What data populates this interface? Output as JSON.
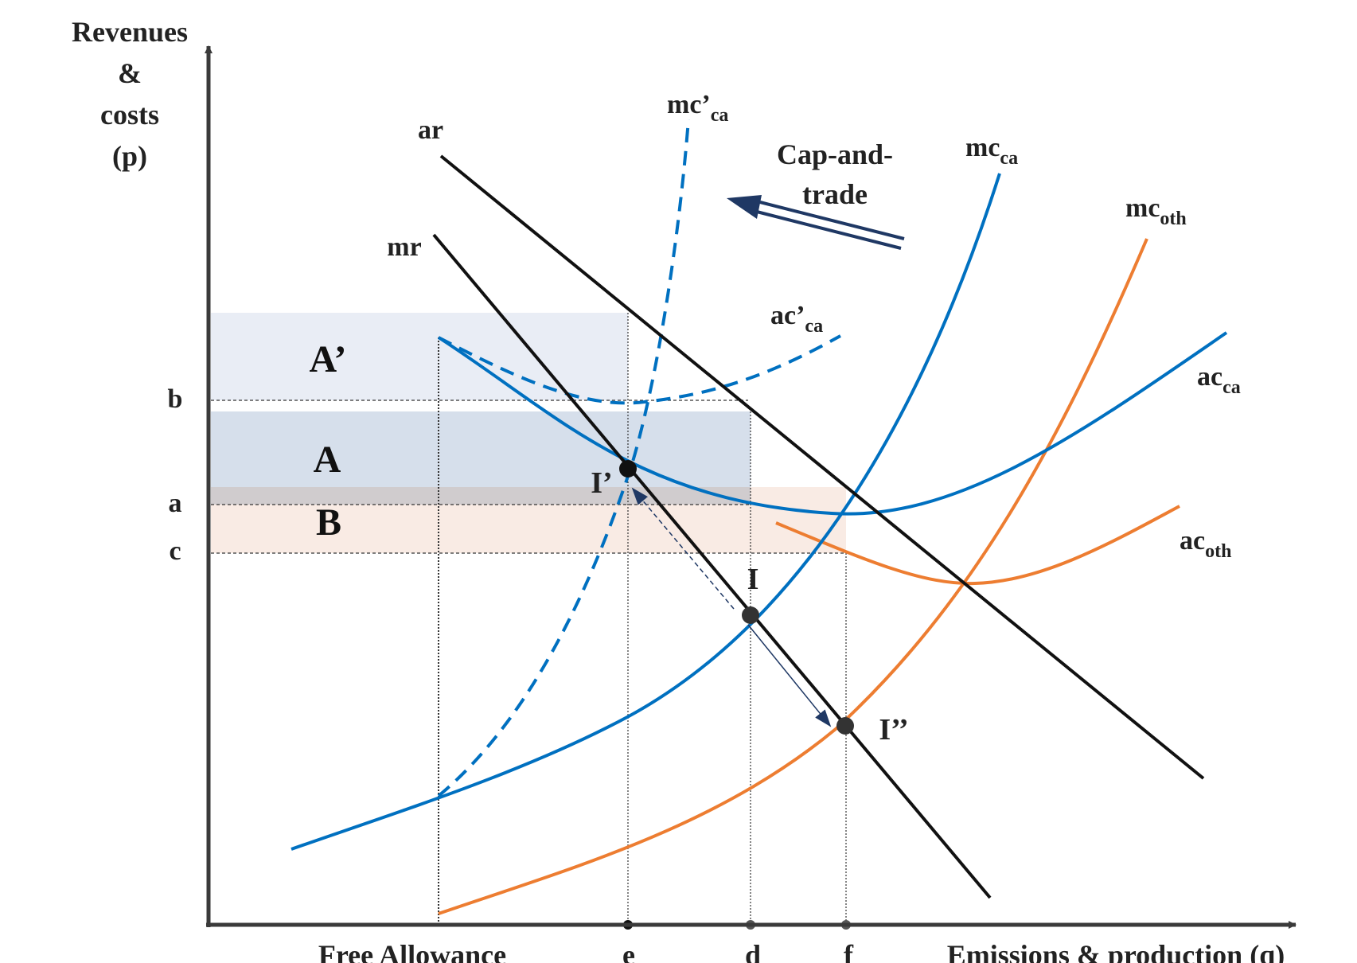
{
  "axes": {
    "y_label_lines": [
      "Revenues",
      "&",
      "costs",
      "(p)"
    ],
    "x_label": "Emissions & production (q)"
  },
  "x_ticks": {
    "free_allowance": "Free Allowance",
    "e": "e",
    "d": "d",
    "f": "f"
  },
  "y_ticks": {
    "b": "b",
    "a": "a",
    "c": "c"
  },
  "curves": {
    "ar": "ar",
    "mr": "mr",
    "mc_ca_prime": {
      "main": "mc’",
      "sub": "ca"
    },
    "ac_ca_prime": {
      "main": "ac’",
      "sub": "ca"
    },
    "mc_ca": {
      "main": "mc",
      "sub": "ca"
    },
    "ac_ca": {
      "main": "ac",
      "sub": "ca"
    },
    "mc_oth": {
      "main": "mc",
      "sub": "oth"
    },
    "ac_oth": {
      "main": "ac",
      "sub": "oth"
    }
  },
  "regions": {
    "a_prime": "A’",
    "a": "A",
    "b": "B"
  },
  "points": {
    "i": "I",
    "i_prime": "I’",
    "i_double_prime": "I’’"
  },
  "annotation": {
    "cap_and_trade_lines": [
      "Cap-and-",
      "trade"
    ]
  },
  "colors": {
    "axis": "#3a3a3a",
    "black_curve": "#111111",
    "blue_curve": "#0070c0",
    "orange_curve": "#ed7d31",
    "arrow": "#1f3864",
    "region_a_prime": "#e9edf5",
    "region_a": "#d6dfeb",
    "region_overlap": "#d0ccce",
    "region_b": "#f9ebe4"
  }
}
